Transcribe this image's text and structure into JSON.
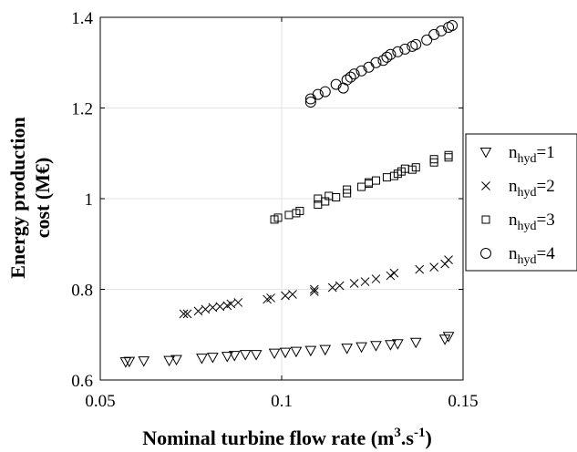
{
  "chart_data": {
    "type": "scatter",
    "title": "",
    "xlabel": "Nominal turbine flow rate (m",
    "xlabel_sup1": "3",
    "xlabel_mid": ".s",
    "xlabel_sup2": "-1",
    "xlabel_end": ")",
    "ylabel_line1": "Energy production",
    "ylabel_line2": "cost (M€)",
    "xlim": [
      0.05,
      0.15
    ],
    "ylim": [
      0.6,
      1.4
    ],
    "xticks": [
      0.05,
      0.1,
      0.15
    ],
    "xtick_labels": [
      "0.05",
      "0.1",
      "0.15"
    ],
    "yticks": [
      0.6,
      0.8,
      1.0,
      1.2,
      1.4
    ],
    "ytick_labels": [
      "0.6",
      "0.8",
      "1",
      "1.2",
      "1.4"
    ],
    "grid": true,
    "legend_position": "right",
    "series": [
      {
        "name": "n_hyd=1",
        "label_base": "n",
        "label_sub": "hyd",
        "label_tail": "=1",
        "marker": "triangle-down",
        "points": [
          [
            0.057,
            0.64
          ],
          [
            0.058,
            0.641
          ],
          [
            0.062,
            0.642
          ],
          [
            0.069,
            0.643
          ],
          [
            0.071,
            0.645
          ],
          [
            0.078,
            0.648
          ],
          [
            0.081,
            0.65
          ],
          [
            0.085,
            0.652
          ],
          [
            0.087,
            0.654
          ],
          [
            0.09,
            0.656
          ],
          [
            0.093,
            0.656
          ],
          [
            0.098,
            0.659
          ],
          [
            0.101,
            0.661
          ],
          [
            0.104,
            0.663
          ],
          [
            0.108,
            0.665
          ],
          [
            0.112,
            0.667
          ],
          [
            0.118,
            0.67
          ],
          [
            0.122,
            0.673
          ],
          [
            0.126,
            0.676
          ],
          [
            0.13,
            0.678
          ],
          [
            0.132,
            0.68
          ],
          [
            0.137,
            0.683
          ],
          [
            0.145,
            0.69
          ],
          [
            0.146,
            0.696
          ]
        ]
      },
      {
        "name": "n_hyd=2",
        "label_base": "n",
        "label_sub": "hyd",
        "label_tail": "=2",
        "marker": "x",
        "points": [
          [
            0.073,
            0.746
          ],
          [
            0.074,
            0.746
          ],
          [
            0.077,
            0.752
          ],
          [
            0.079,
            0.756
          ],
          [
            0.081,
            0.76
          ],
          [
            0.083,
            0.762
          ],
          [
            0.085,
            0.764
          ],
          [
            0.086,
            0.768
          ],
          [
            0.088,
            0.771
          ],
          [
            0.096,
            0.778
          ],
          [
            0.097,
            0.781
          ],
          [
            0.101,
            0.786
          ],
          [
            0.103,
            0.789
          ],
          [
            0.109,
            0.795
          ],
          [
            0.109,
            0.8
          ],
          [
            0.114,
            0.804
          ],
          [
            0.116,
            0.808
          ],
          [
            0.12,
            0.813
          ],
          [
            0.123,
            0.817
          ],
          [
            0.126,
            0.823
          ],
          [
            0.13,
            0.83
          ],
          [
            0.131,
            0.836
          ],
          [
            0.138,
            0.844
          ],
          [
            0.142,
            0.849
          ],
          [
            0.145,
            0.856
          ],
          [
            0.146,
            0.865
          ]
        ]
      },
      {
        "name": "n_hyd=3",
        "label_base": "n",
        "label_sub": "hyd",
        "label_tail": "=3",
        "marker": "square",
        "points": [
          [
            0.098,
            0.954
          ],
          [
            0.099,
            0.958
          ],
          [
            0.102,
            0.964
          ],
          [
            0.104,
            0.968
          ],
          [
            0.105,
            0.973
          ],
          [
            0.11,
            0.987
          ],
          [
            0.11,
            1.0
          ],
          [
            0.112,
            0.994
          ],
          [
            0.113,
            1.006
          ],
          [
            0.115,
            1.003
          ],
          [
            0.118,
            1.012
          ],
          [
            0.118,
            1.02
          ],
          [
            0.122,
            1.026
          ],
          [
            0.124,
            1.033
          ],
          [
            0.124,
            1.036
          ],
          [
            0.126,
            1.04
          ],
          [
            0.129,
            1.047
          ],
          [
            0.131,
            1.05
          ],
          [
            0.132,
            1.055
          ],
          [
            0.133,
            1.06
          ],
          [
            0.134,
            1.066
          ],
          [
            0.136,
            1.064
          ],
          [
            0.137,
            1.069
          ],
          [
            0.142,
            1.08
          ],
          [
            0.142,
            1.087
          ],
          [
            0.146,
            1.091
          ],
          [
            0.146,
            1.096
          ]
        ]
      },
      {
        "name": "n_hyd=4",
        "label_base": "n",
        "label_sub": "hyd",
        "label_tail": "=4",
        "marker": "circle",
        "points": [
          [
            0.108,
            1.213
          ],
          [
            0.108,
            1.22
          ],
          [
            0.11,
            1.23
          ],
          [
            0.112,
            1.236
          ],
          [
            0.115,
            1.252
          ],
          [
            0.117,
            1.244
          ],
          [
            0.118,
            1.262
          ],
          [
            0.119,
            1.268
          ],
          [
            0.12,
            1.275
          ],
          [
            0.122,
            1.282
          ],
          [
            0.124,
            1.29
          ],
          [
            0.126,
            1.3
          ],
          [
            0.128,
            1.305
          ],
          [
            0.129,
            1.312
          ],
          [
            0.13,
            1.318
          ],
          [
            0.132,
            1.324
          ],
          [
            0.134,
            1.33
          ],
          [
            0.136,
            1.336
          ],
          [
            0.137,
            1.34
          ],
          [
            0.14,
            1.35
          ],
          [
            0.142,
            1.362
          ],
          [
            0.144,
            1.37
          ],
          [
            0.146,
            1.378
          ],
          [
            0.147,
            1.382
          ]
        ]
      }
    ]
  }
}
